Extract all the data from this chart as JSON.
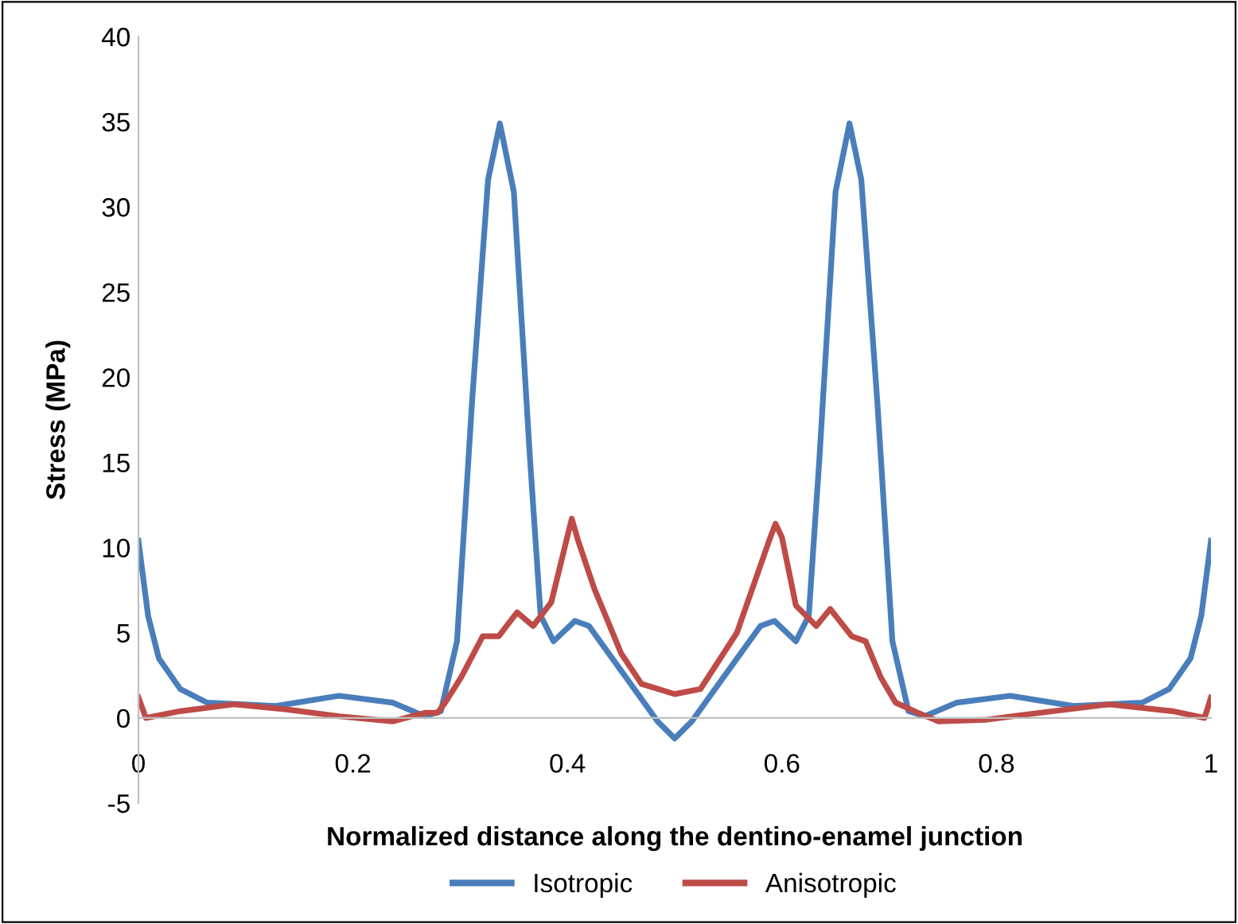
{
  "chart_data": {
    "type": "line",
    "xlabel": "Normalized distance along the dentino-enamel junction",
    "ylabel": "Stress (MPa)",
    "xlim": [
      0,
      1
    ],
    "xticks": [
      0,
      0.2,
      0.4,
      0.6,
      0.8,
      1
    ],
    "ylim": [
      -5,
      40
    ],
    "yticks": [
      -5,
      0,
      5,
      10,
      15,
      20,
      25,
      30,
      35,
      40
    ],
    "grid": false,
    "legend": "bottom",
    "marker": "none",
    "line_style": "solid",
    "series": [
      {
        "name": "Isotropic",
        "color": "#4a7ebb",
        "x": [
          0,
          0.009,
          0.019,
          0.039,
          0.064,
          0.128,
          0.187,
          0.237,
          0.267,
          0.282,
          0.297,
          0.311,
          0.326,
          0.337,
          0.35,
          0.365,
          0.375,
          0.387,
          0.407,
          0.42,
          0.459,
          0.484,
          0.5,
          0.516,
          0.541,
          0.58,
          0.593,
          0.613,
          0.625,
          0.635,
          0.65,
          0.663,
          0.674,
          0.689,
          0.703,
          0.718,
          0.733,
          0.763,
          0.813,
          0.872,
          0.936,
          0.961,
          0.981,
          0.991,
          1
        ],
        "values": [
          10.4,
          6.0,
          3.5,
          1.7,
          0.9,
          0.7,
          1.3,
          0.9,
          0.1,
          0.4,
          4.5,
          18.5,
          31.6,
          34.9,
          30.9,
          15.3,
          6.0,
          4.5,
          5.7,
          5.4,
          2.0,
          -0.2,
          -1.2,
          -0.2,
          2.0,
          5.4,
          5.7,
          4.5,
          6.0,
          15.3,
          30.9,
          34.9,
          31.6,
          18.5,
          4.5,
          0.4,
          0.1,
          0.9,
          1.3,
          0.7,
          0.9,
          1.7,
          3.5,
          6.0,
          10.4
        ]
      },
      {
        "name": "Anisotropic",
        "color": "#be4b48",
        "x": [
          0,
          0.007,
          0.039,
          0.089,
          0.138,
          0.187,
          0.237,
          0.267,
          0.279,
          0.286,
          0.301,
          0.321,
          0.336,
          0.353,
          0.368,
          0.385,
          0.404,
          0.41,
          0.425,
          0.45,
          0.469,
          0.5,
          0.524,
          0.558,
          0.588,
          0.594,
          0.6,
          0.613,
          0.632,
          0.645,
          0.665,
          0.678,
          0.692,
          0.706,
          0.727,
          0.746,
          0.791,
          0.84,
          0.905,
          0.964,
          0.994,
          1
        ],
        "values": [
          1.2,
          0.0,
          0.4,
          0.8,
          0.5,
          0.1,
          -0.2,
          0.3,
          0.3,
          0.9,
          2.4,
          4.8,
          4.8,
          6.2,
          5.4,
          6.8,
          11.7,
          10.4,
          7.6,
          3.8,
          2.0,
          1.4,
          1.7,
          5.0,
          10.4,
          11.4,
          10.6,
          6.6,
          5.4,
          6.4,
          4.8,
          4.5,
          2.4,
          0.9,
          0.3,
          -0.2,
          -0.1,
          0.3,
          0.8,
          0.4,
          0.0,
          1.2
        ]
      }
    ]
  }
}
